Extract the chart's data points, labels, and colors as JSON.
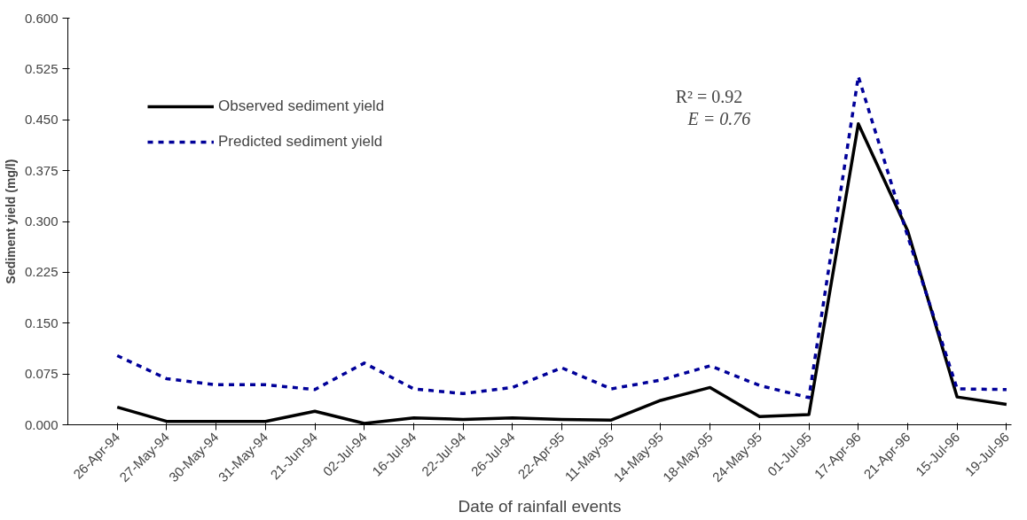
{
  "chart_data": {
    "type": "line",
    "xlabel": "Date of rainfall events",
    "ylabel": "Sediment yield (mg/l)",
    "categories": [
      "26-Apr-94",
      "27-May-94",
      "30-May-94",
      "31-May-94",
      "21-Jun-94",
      "02-Jul-94",
      "16-Jul-94",
      "22-Jul-94",
      "26-Jul-94",
      "22-Apr-95",
      "11-May-95",
      "14-May-95",
      "18-May-95",
      "24-May-95",
      "01-Jul-95",
      "17-Apr-96",
      "21-Apr-96",
      "15-Jul-96",
      "19-Jul-96"
    ],
    "series": [
      {
        "name": "Observed sediment yield",
        "color": "#000000",
        "line_style": "solid",
        "values": [
          0.026,
          0.005,
          0.005,
          0.005,
          0.02,
          0.002,
          0.01,
          0.008,
          0.01,
          0.008,
          0.007,
          0.036,
          0.055,
          0.012,
          0.015,
          0.444,
          0.286,
          0.041,
          0.03
        ]
      },
      {
        "name": "Predicted sediment yield",
        "color": "#000099",
        "line_style": "dashed",
        "values": [
          0.102,
          0.068,
          0.059,
          0.059,
          0.052,
          0.091,
          0.053,
          0.046,
          0.055,
          0.084,
          0.053,
          0.066,
          0.087,
          0.058,
          0.04,
          0.514,
          0.278,
          0.053,
          0.052
        ]
      }
    ],
    "ylim": [
      0,
      0.6
    ],
    "yticks": [
      {
        "value": 0,
        "label": "0.000"
      },
      {
        "value": 0.075,
        "label": "0.075"
      },
      {
        "value": 0.15,
        "label": "0.150"
      },
      {
        "value": 0.225,
        "label": "0.225"
      },
      {
        "value": 0.3,
        "label": "0.300"
      },
      {
        "value": 0.375,
        "label": "0.375"
      },
      {
        "value": 0.45,
        "label": "0.450"
      },
      {
        "value": 0.525,
        "label": "0.525"
      },
      {
        "value": 0.6,
        "label": "0.600"
      }
    ],
    "grid": false,
    "legend": "top left",
    "marker": "none",
    "annotations": [
      "R² = 0.92",
      "E = 0.76"
    ]
  }
}
